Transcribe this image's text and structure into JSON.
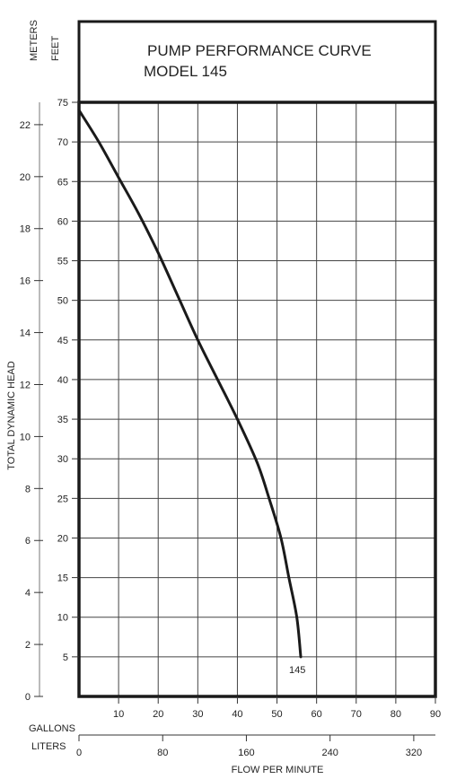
{
  "chart_data": {
    "type": "line",
    "title_line1": "PUMP PERFORMANCE CURVE",
    "title_line2": "MODEL 145",
    "meters_label": "METERS",
    "feet_label": "FEET",
    "ylabel": "TOTAL DYNAMIC HEAD",
    "xlabel": "FLOW PER MINUTE",
    "gallons_label": "GALLONS",
    "liters_label": "LITERS",
    "x_unit": "gallons per minute",
    "y_unit": "feet",
    "xlim": [
      0,
      90
    ],
    "ylim": [
      0,
      75
    ],
    "grid": true,
    "feet_ticks": [
      5,
      10,
      15,
      20,
      25,
      30,
      35,
      40,
      45,
      50,
      55,
      60,
      65,
      70,
      75
    ],
    "meters_ticks": [
      0,
      2,
      4,
      6,
      8,
      10,
      12,
      14,
      16,
      18,
      20,
      22
    ],
    "gallons_ticks": [
      10,
      20,
      30,
      40,
      50,
      60,
      70,
      80,
      90
    ],
    "liters_ticks": [
      0,
      80,
      160,
      240,
      320
    ],
    "series": [
      {
        "name": "145",
        "color": "#1a1a1a",
        "x": [
          0,
          5,
          10,
          15,
          20,
          25,
          30,
          35,
          40,
          45,
          48,
          51,
          53,
          55,
          56
        ],
        "y": [
          74,
          70,
          65.5,
          61,
          56,
          50.5,
          45,
          40,
          35,
          29.5,
          25,
          20,
          15,
          10,
          5
        ]
      }
    ]
  }
}
